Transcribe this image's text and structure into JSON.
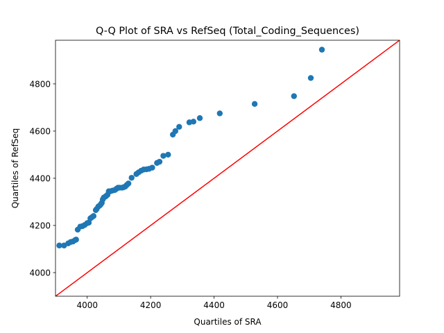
{
  "chart_data": {
    "type": "scatter",
    "title": "Q-Q Plot of SRA vs RefSeq (Total_Coding_Sequences)",
    "xlabel": "Quartiles of SRA",
    "ylabel": "Quartiles of RefSeq",
    "xlim": [
      3900,
      4985
    ],
    "ylim": [
      3900,
      4985
    ],
    "xticks": [
      "4000",
      "4200",
      "4400",
      "4600",
      "4800"
    ],
    "yticks": [
      "4000",
      "4200",
      "4400",
      "4600",
      "4800"
    ],
    "xtick_values": [
      4000,
      4200,
      4400,
      4600,
      4800
    ],
    "ytick_values": [
      4000,
      4200,
      4400,
      4600,
      4800
    ],
    "grid": false,
    "legend": false,
    "series": [
      {
        "color": "#1f77b4",
        "marker": "circle",
        "x": [
          3912,
          3927,
          3940,
          3948,
          3955,
          3962,
          3965,
          3970,
          3978,
          3985,
          3992,
          4000,
          4005,
          4010,
          4015,
          4020,
          4027,
          4030,
          4035,
          4040,
          4043,
          4046,
          4049,
          4052,
          4057,
          4060,
          4064,
          4068,
          4073,
          4080,
          4087,
          4092,
          4097,
          4102,
          4110,
          4115,
          4120,
          4125,
          4130,
          4140,
          4155,
          4162,
          4170,
          4178,
          4187,
          4195,
          4205,
          4220,
          4228,
          4240,
          4255,
          4270,
          4278,
          4290,
          4322,
          4335,
          4355,
          4418,
          4528,
          4652,
          4705,
          4740
        ],
        "y": [
          4115,
          4115,
          4124,
          4130,
          4132,
          4138,
          4140,
          4182,
          4195,
          4197,
          4202,
          4210,
          4212,
          4230,
          4235,
          4240,
          4265,
          4270,
          4280,
          4285,
          4290,
          4296,
          4310,
          4318,
          4322,
          4325,
          4330,
          4345,
          4345,
          4348,
          4350,
          4355,
          4360,
          4360,
          4360,
          4362,
          4365,
          4372,
          4378,
          4402,
          4418,
          4425,
          4432,
          4437,
          4438,
          4440,
          4445,
          4465,
          4470,
          4495,
          4500,
          4585,
          4600,
          4618,
          4637,
          4640,
          4655,
          4675,
          4715,
          4748,
          4825,
          4945
        ]
      }
    ],
    "reference_line": {
      "color": "#ff0000",
      "x": [
        3900,
        4985
      ],
      "y": [
        3900,
        4985
      ]
    }
  }
}
